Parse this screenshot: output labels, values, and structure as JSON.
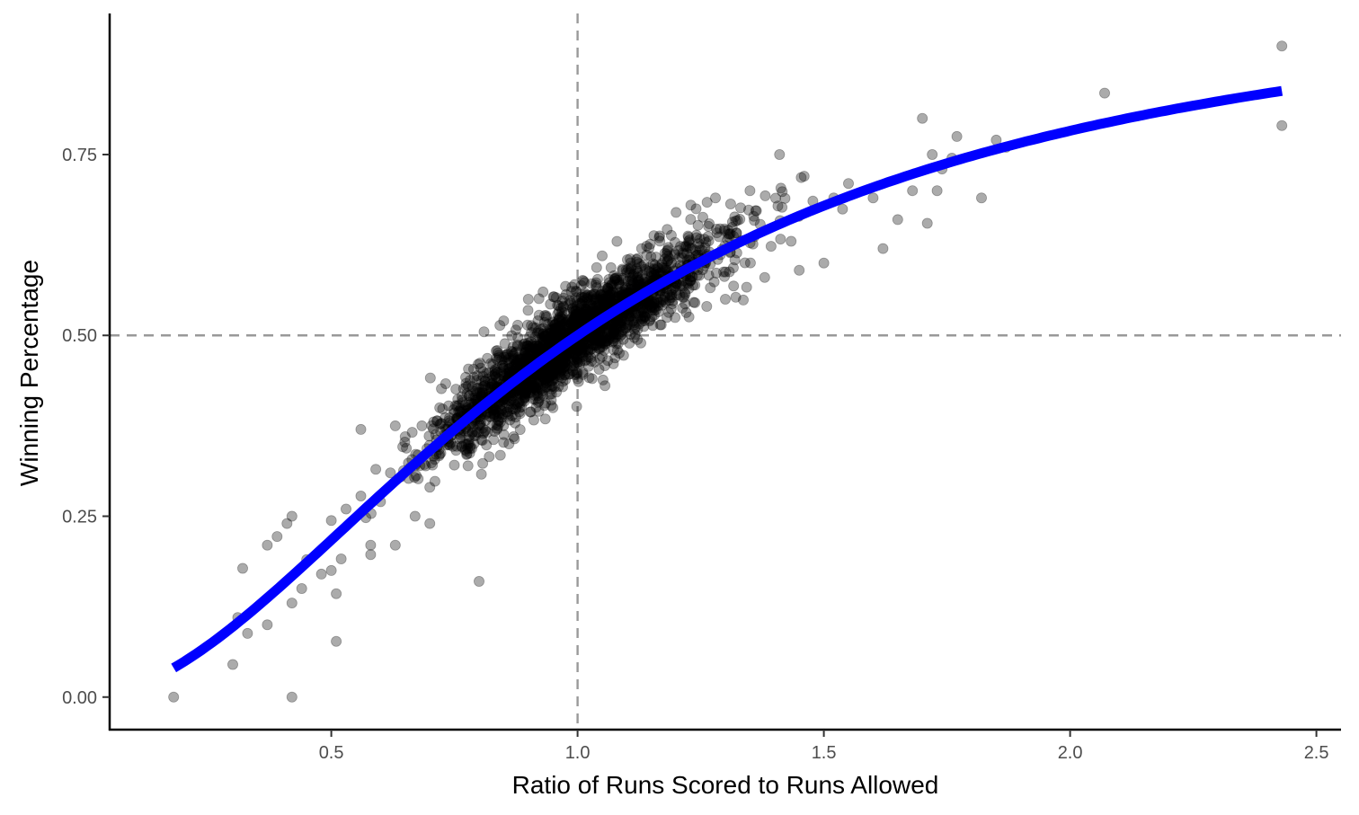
{
  "chart_data": {
    "type": "scatter",
    "title": "",
    "xlabel": "Ratio of Runs Scored to Runs Allowed",
    "ylabel": "Winning Percentage",
    "xlim": [
      0.05,
      2.55
    ],
    "ylim": [
      -0.045,
      0.945
    ],
    "x_ticks": [
      0.5,
      1.0,
      1.5,
      2.0,
      2.5
    ],
    "x_tick_labels": [
      "0.5",
      "1.0",
      "1.5",
      "2.0",
      "2.5"
    ],
    "y_ticks": [
      0.0,
      0.25,
      0.5,
      0.75
    ],
    "y_tick_labels": [
      "0.00",
      "0.25",
      "0.50",
      "0.75"
    ],
    "reference_lines": {
      "vertical_x": 1.0,
      "horizontal_y": 0.5,
      "style": "dashed",
      "color": "#999999"
    },
    "grid": false,
    "legend": "none",
    "point_color": "#000000",
    "point_opacity": 0.33,
    "fit_line_color": "#0000ff",
    "fit_curve_exponent": 1.85,
    "fit_curve_x_range": [
      0.18,
      2.43
    ],
    "points": [
      [
        0.18,
        0.0
      ],
      [
        0.42,
        0.0
      ],
      [
        0.3,
        0.045
      ],
      [
        0.31,
        0.11
      ],
      [
        0.33,
        0.088
      ],
      [
        0.32,
        0.178
      ],
      [
        0.37,
        0.1
      ],
      [
        0.37,
        0.21
      ],
      [
        0.39,
        0.222
      ],
      [
        0.41,
        0.24
      ],
      [
        0.42,
        0.25
      ],
      [
        0.42,
        0.13
      ],
      [
        0.44,
        0.15
      ],
      [
        0.45,
        0.19
      ],
      [
        0.48,
        0.17
      ],
      [
        0.5,
        0.175
      ],
      [
        0.51,
        0.143
      ],
      [
        0.51,
        0.077
      ],
      [
        0.5,
        0.244
      ],
      [
        0.52,
        0.191
      ],
      [
        0.53,
        0.26
      ],
      [
        0.56,
        0.278
      ],
      [
        0.56,
        0.37
      ],
      [
        0.58,
        0.21
      ],
      [
        0.58,
        0.197
      ],
      [
        0.57,
        0.248
      ],
      [
        0.6,
        0.27
      ],
      [
        0.62,
        0.31
      ],
      [
        0.63,
        0.21
      ],
      [
        0.63,
        0.375
      ],
      [
        0.65,
        0.36
      ],
      [
        0.67,
        0.25
      ],
      [
        0.68,
        0.32
      ],
      [
        0.7,
        0.24
      ],
      [
        0.7,
        0.29
      ],
      [
        0.72,
        0.4
      ],
      [
        0.8,
        0.16
      ],
      [
        0.81,
        0.505
      ],
      [
        0.85,
        0.52
      ],
      [
        0.87,
        0.36
      ],
      [
        0.9,
        0.55
      ],
      [
        0.93,
        0.56
      ],
      [
        0.95,
        0.4
      ],
      [
        1.0,
        0.44
      ],
      [
        1.05,
        0.61
      ],
      [
        1.08,
        0.63
      ],
      [
        1.13,
        0.62
      ],
      [
        1.2,
        0.67
      ],
      [
        1.23,
        0.68
      ],
      [
        1.28,
        0.69
      ],
      [
        1.3,
        0.55
      ],
      [
        1.35,
        0.7
      ],
      [
        1.38,
        0.58
      ],
      [
        1.41,
        0.75
      ],
      [
        1.45,
        0.59
      ],
      [
        1.46,
        0.72
      ],
      [
        1.5,
        0.6
      ],
      [
        1.52,
        0.69
      ],
      [
        1.55,
        0.71
      ],
      [
        1.6,
        0.69
      ],
      [
        1.62,
        0.62
      ],
      [
        1.65,
        0.66
      ],
      [
        1.68,
        0.7
      ],
      [
        1.7,
        0.8
      ],
      [
        1.71,
        0.655
      ],
      [
        1.72,
        0.75
      ],
      [
        1.73,
        0.7
      ],
      [
        1.74,
        0.73
      ],
      [
        1.76,
        0.745
      ],
      [
        1.77,
        0.775
      ],
      [
        1.82,
        0.69
      ],
      [
        1.85,
        0.77
      ],
      [
        1.87,
        0.76
      ],
      [
        2.07,
        0.835
      ],
      [
        2.43,
        0.9
      ],
      [
        2.43,
        0.79
      ]
    ]
  }
}
